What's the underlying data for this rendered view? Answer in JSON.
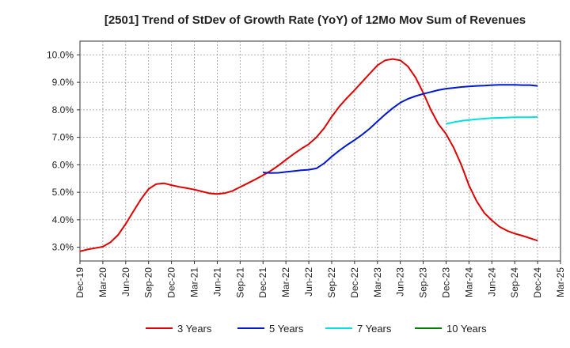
{
  "chart_data": {
    "type": "line",
    "title": "[2501]  Trend of StDev of Growth Rate (YoY) of 12Mo Mov Sum of Revenues",
    "xlabel": "",
    "ylabel": "",
    "ylim": [
      2.5,
      10.5
    ],
    "y_ticks": [
      3.0,
      4.0,
      5.0,
      6.0,
      7.0,
      8.0,
      9.0,
      10.0
    ],
    "y_tick_labels": [
      "3.0%",
      "4.0%",
      "5.0%",
      "6.0%",
      "7.0%",
      "8.0%",
      "9.0%",
      "10.0%"
    ],
    "x_range": [
      0,
      63
    ],
    "x_tick_positions": [
      0,
      3,
      6,
      9,
      12,
      15,
      18,
      21,
      24,
      27,
      30,
      33,
      36,
      39,
      42,
      45,
      48,
      51,
      54,
      57,
      60,
      63
    ],
    "x_tick_labels": [
      "Dec-19",
      "Mar-20",
      "Jun-20",
      "Sep-20",
      "Dec-20",
      "Mar-21",
      "Jun-21",
      "Sep-21",
      "Dec-21",
      "Mar-22",
      "Jun-22",
      "Sep-22",
      "Dec-22",
      "Mar-23",
      "Jun-23",
      "Sep-23",
      "Dec-23",
      "Mar-24",
      "Jun-24",
      "Sep-24",
      "Dec-24",
      "Mar-25"
    ],
    "grid": true,
    "legend_position": "bottom",
    "series": [
      {
        "name": "3 Years",
        "color": "#e00000",
        "x": [
          0,
          1,
          2,
          3,
          4,
          5,
          6,
          7,
          8,
          9,
          10,
          11,
          12,
          13,
          14,
          15,
          16,
          17,
          18,
          19,
          20,
          21,
          22,
          23,
          24,
          25,
          26,
          27,
          28,
          29,
          30,
          31,
          32,
          33,
          34,
          35,
          36,
          37,
          38,
          39,
          40,
          41,
          42,
          43,
          44,
          45,
          46,
          47,
          48,
          49,
          50,
          51,
          52,
          53,
          54,
          55,
          56,
          57,
          58,
          59,
          60
        ],
        "values": [
          2.85,
          2.92,
          2.97,
          3.02,
          3.18,
          3.45,
          3.85,
          4.3,
          4.75,
          5.12,
          5.3,
          5.33,
          5.26,
          5.2,
          5.15,
          5.1,
          5.03,
          4.96,
          4.94,
          4.97,
          5.05,
          5.19,
          5.33,
          5.47,
          5.62,
          5.78,
          5.97,
          6.18,
          6.39,
          6.58,
          6.75,
          7.0,
          7.33,
          7.75,
          8.12,
          8.43,
          8.72,
          9.02,
          9.32,
          9.62,
          9.8,
          9.85,
          9.8,
          9.58,
          9.18,
          8.62,
          8.0,
          7.48,
          7.12,
          6.62,
          6.0,
          5.25,
          4.68,
          4.25,
          3.98,
          3.75,
          3.6,
          3.5,
          3.42,
          3.33,
          3.24
        ]
      },
      {
        "name": "5 Years",
        "color": "#0018d0",
        "x": [
          24,
          25,
          26,
          27,
          28,
          29,
          30,
          31,
          32,
          33,
          34,
          35,
          36,
          37,
          38,
          39,
          40,
          41,
          42,
          43,
          44,
          45,
          46,
          47,
          48,
          49,
          50,
          51,
          52,
          53,
          54,
          55,
          56,
          57,
          58,
          59,
          60
        ],
        "values": [
          5.72,
          5.7,
          5.71,
          5.74,
          5.77,
          5.8,
          5.82,
          5.87,
          6.05,
          6.3,
          6.52,
          6.72,
          6.9,
          7.1,
          7.32,
          7.58,
          7.83,
          8.06,
          8.26,
          8.4,
          8.5,
          8.58,
          8.65,
          8.72,
          8.77,
          8.8,
          8.83,
          8.85,
          8.87,
          8.88,
          8.9,
          8.91,
          8.91,
          8.91,
          8.9,
          8.9,
          8.87
        ]
      },
      {
        "name": "7 Years",
        "color": "#00e0e0",
        "x": [
          48,
          49,
          50,
          51,
          52,
          53,
          54,
          55,
          56,
          57,
          58,
          59,
          60
        ],
        "values": [
          7.49,
          7.55,
          7.6,
          7.63,
          7.66,
          7.68,
          7.7,
          7.71,
          7.72,
          7.73,
          7.73,
          7.73,
          7.74
        ]
      },
      {
        "name": "10 Years",
        "color": "#008000",
        "x": [],
        "values": []
      }
    ]
  }
}
